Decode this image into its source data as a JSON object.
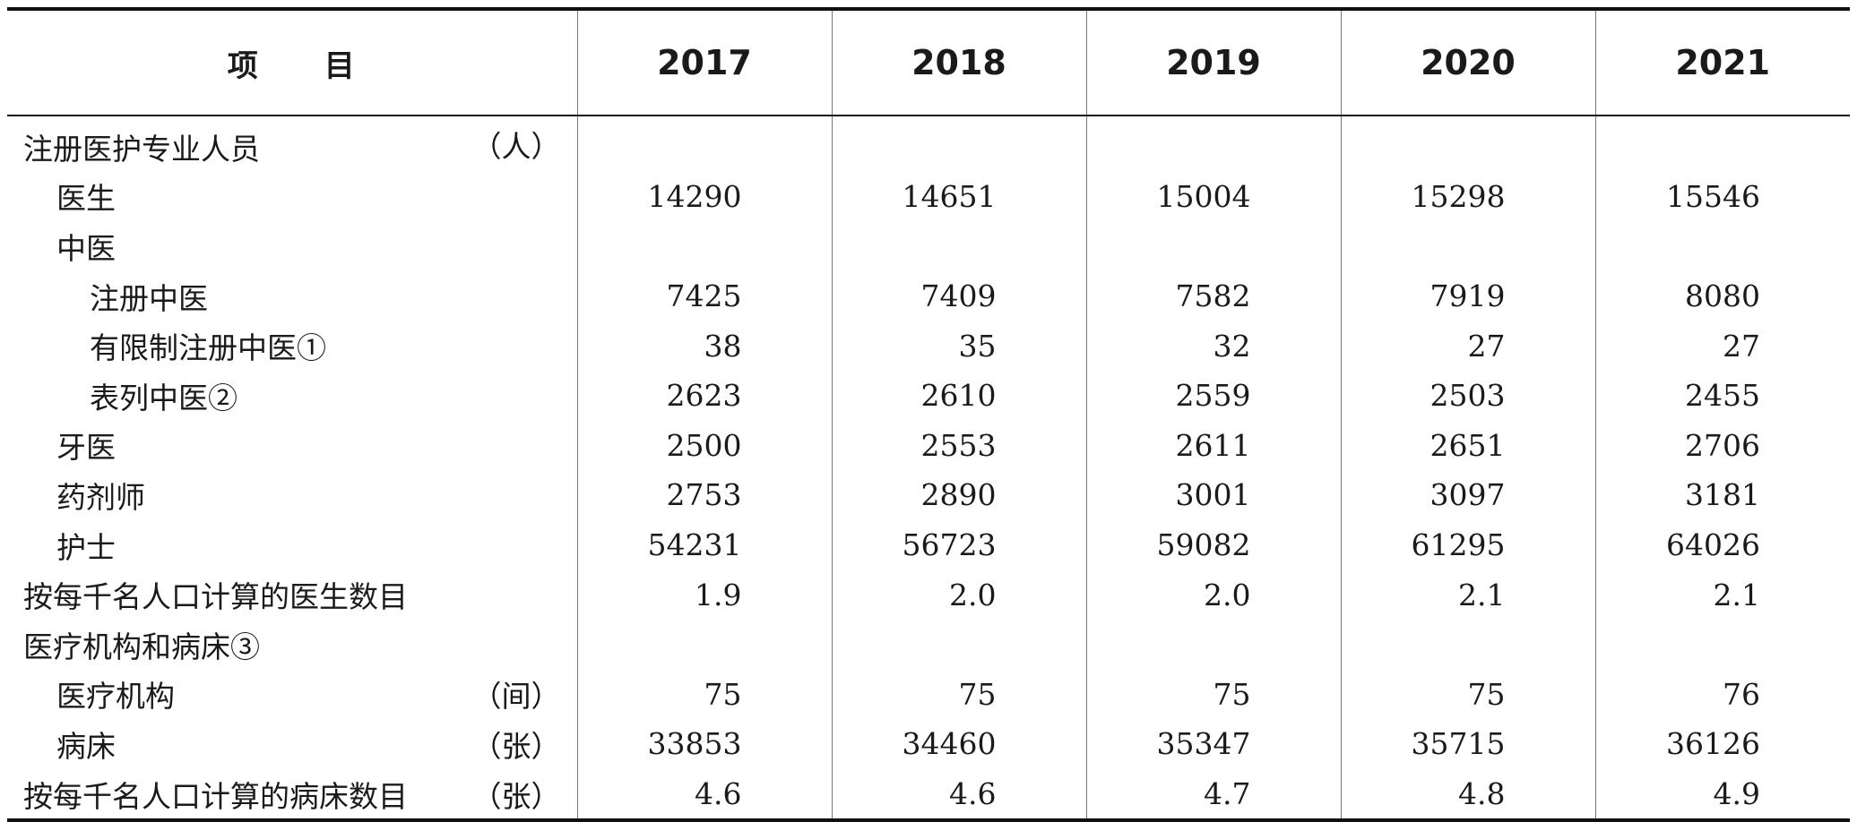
{
  "header": {
    "item_a": "项",
    "item_b": "目",
    "years": [
      "2017",
      "2018",
      "2019",
      "2020",
      "2021"
    ]
  },
  "rows": [
    {
      "label": "注册医护专业人员",
      "unit": "（人）",
      "values": [
        "",
        "",
        "",
        "",
        ""
      ]
    },
    {
      "label": "医生",
      "unit": "",
      "values": [
        "14290",
        "14651",
        "15004",
        "15298",
        "15546"
      ]
    },
    {
      "label": "中医",
      "unit": "",
      "values": [
        "",
        "",
        "",
        "",
        ""
      ]
    },
    {
      "label": "注册中医",
      "unit": "",
      "values": [
        "7425",
        "7409",
        "7582",
        "7919",
        "8080"
      ]
    },
    {
      "label": "有限制注册中医①",
      "unit": "",
      "values": [
        "38",
        "35",
        "32",
        "27",
        "27"
      ]
    },
    {
      "label": "表列中医②",
      "unit": "",
      "values": [
        "2623",
        "2610",
        "2559",
        "2503",
        "2455"
      ]
    },
    {
      "label": "牙医",
      "unit": "",
      "values": [
        "2500",
        "2553",
        "2611",
        "2651",
        "2706"
      ]
    },
    {
      "label": "药剂师",
      "unit": "",
      "values": [
        "2753",
        "2890",
        "3001",
        "3097",
        "3181"
      ]
    },
    {
      "label": "护士",
      "unit": "",
      "values": [
        "54231",
        "56723",
        "59082",
        "61295",
        "64026"
      ]
    },
    {
      "label": "按每千名人口计算的医生数目",
      "unit": "",
      "values": [
        "1.9",
        "2.0",
        "2.0",
        "2.1",
        "2.1"
      ]
    },
    {
      "label": "医疗机构和病床③",
      "unit": "",
      "values": [
        "",
        "",
        "",
        "",
        ""
      ]
    },
    {
      "label": "医疗机构",
      "unit": "（间）",
      "values": [
        "75",
        "75",
        "75",
        "75",
        "76"
      ]
    },
    {
      "label": "病床",
      "unit": "（张）",
      "values": [
        "33853",
        "34460",
        "35347",
        "35715",
        "36126"
      ]
    },
    {
      "label": "按每千名人口计算的病床数目",
      "unit": "（张）",
      "values": [
        "4.6",
        "4.6",
        "4.7",
        "4.8",
        "4.9"
      ]
    }
  ]
}
